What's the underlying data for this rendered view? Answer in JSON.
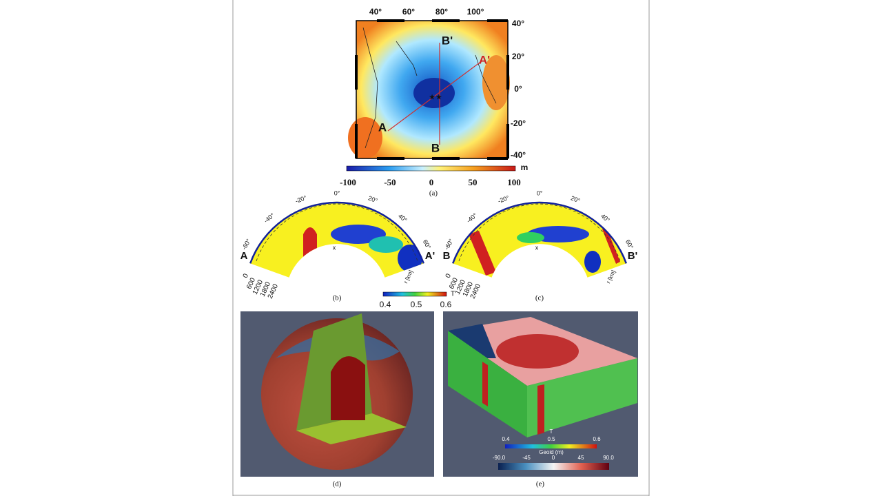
{
  "panel_a": {
    "lon_ticks": [
      "40°",
      "60°",
      "80°",
      "100°"
    ],
    "lat_ticks": [
      "40°",
      "20°",
      "0°",
      "-20°",
      "-40°"
    ],
    "profile_labels": [
      "A",
      "B",
      "B'",
      "A'"
    ],
    "colorbar": {
      "ticks": [
        -100,
        -50,
        0,
        50,
        100
      ],
      "unit": "m"
    },
    "caption": "(a)"
  },
  "panel_b": {
    "angle_ticks": [
      "-60°",
      "-40°",
      "-20°",
      "0°",
      "20°",
      "40°",
      "60°"
    ],
    "depth_ticks": [
      0,
      600,
      1200,
      1800,
      2400
    ],
    "radius_label": "r [km]",
    "center_label": "x",
    "start": "A",
    "end": "A'",
    "caption": "(b)"
  },
  "panel_c": {
    "angle_ticks": [
      "-60°",
      "-40°",
      "-20°",
      "0°",
      "20°",
      "40°",
      "60°"
    ],
    "depth_ticks": [
      0,
      600,
      1200,
      1800,
      2400
    ],
    "radius_label": "r [km]",
    "center_label": "x",
    "start": "B",
    "end": "B'",
    "caption": "(c)"
  },
  "temperature_colorbar": {
    "label": "T",
    "ticks": [
      0.4,
      0.5,
      0.6
    ]
  },
  "panel_d": {
    "caption": "(d)"
  },
  "panel_e": {
    "temperature_colorbar": {
      "label": "T",
      "ticks": [
        0.4,
        0.5,
        0.6
      ]
    },
    "geoid_colorbar": {
      "label": "Geoid (m)",
      "ticks": [
        "-90.0",
        -45,
        0,
        45,
        "90.0"
      ]
    },
    "caption": "(e)"
  }
}
